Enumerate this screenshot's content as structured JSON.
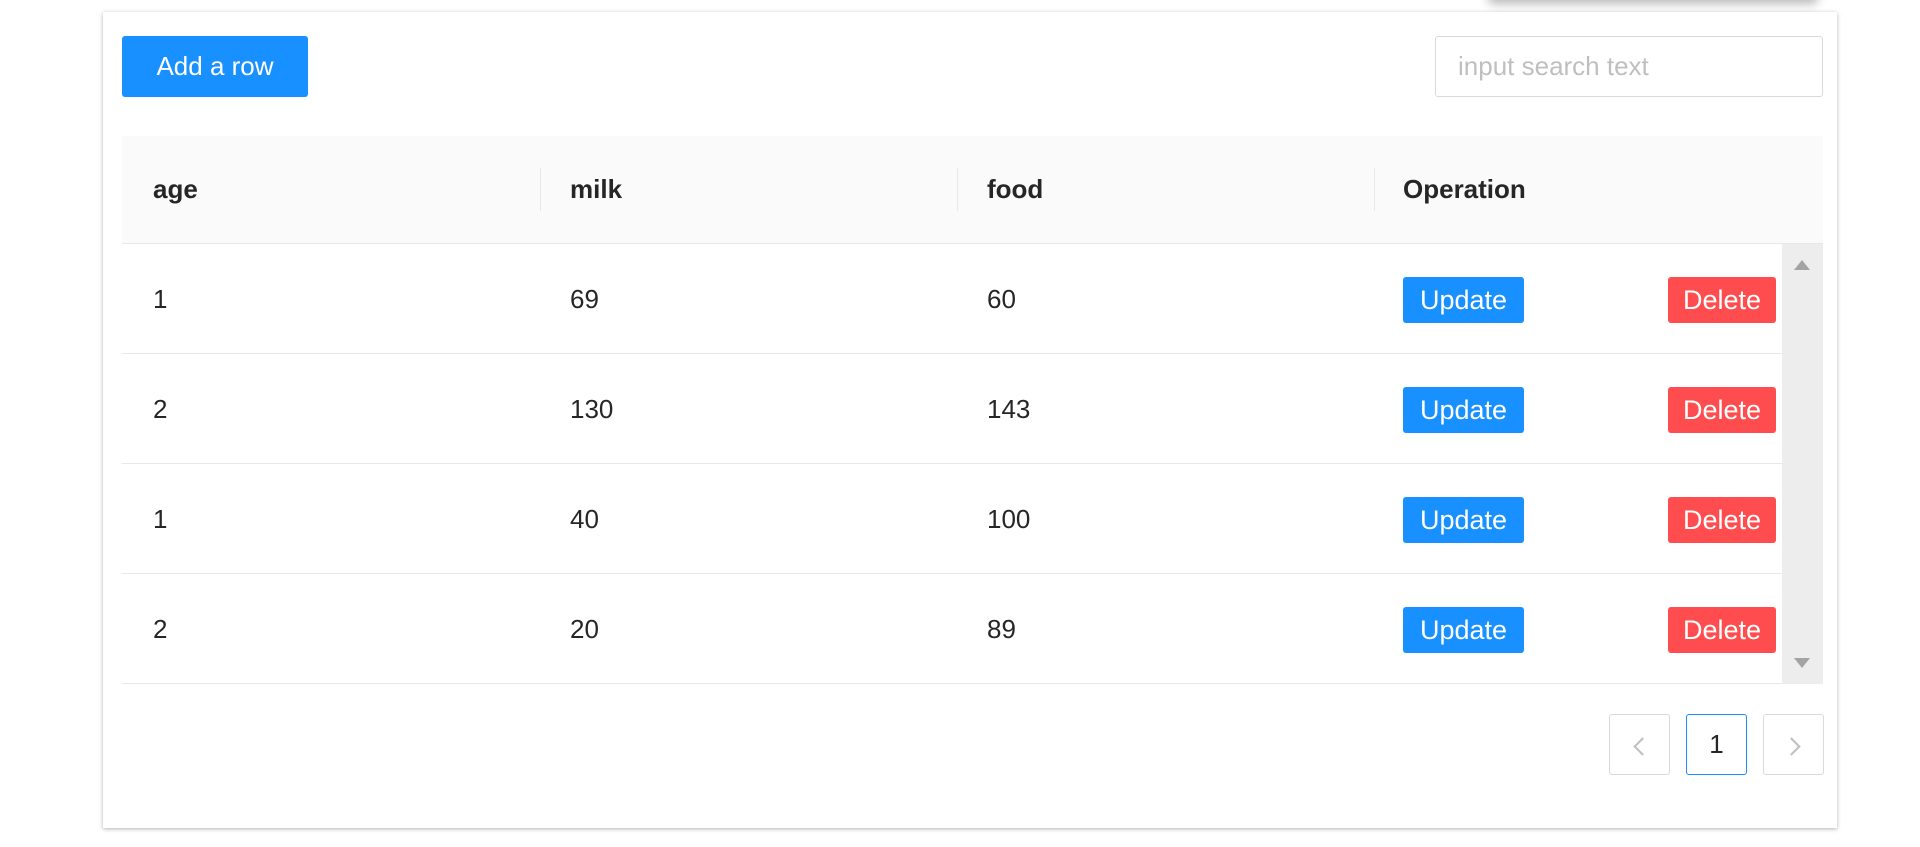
{
  "toolbar": {
    "add_label": "Add a row",
    "search_placeholder": "input search text"
  },
  "table": {
    "columns": [
      "age",
      "milk",
      "food",
      "Operation"
    ],
    "rows": [
      {
        "age": "1",
        "milk": "69",
        "food": "60"
      },
      {
        "age": "2",
        "milk": "130",
        "food": "143"
      },
      {
        "age": "1",
        "milk": "40",
        "food": "100"
      },
      {
        "age": "2",
        "milk": "20",
        "food": "89"
      }
    ],
    "update_label": "Update",
    "delete_label": "Delete"
  },
  "pagination": {
    "current_page": "1"
  },
  "colors": {
    "primary": "#1890ff",
    "danger": "#ff4d4f",
    "header_bg": "#fafafa",
    "border": "#e8e8e8"
  },
  "icons": {
    "prev": "chevron-left-icon",
    "next": "chevron-right-icon",
    "scroll_up": "caret-up-icon",
    "scroll_down": "caret-down-icon"
  }
}
